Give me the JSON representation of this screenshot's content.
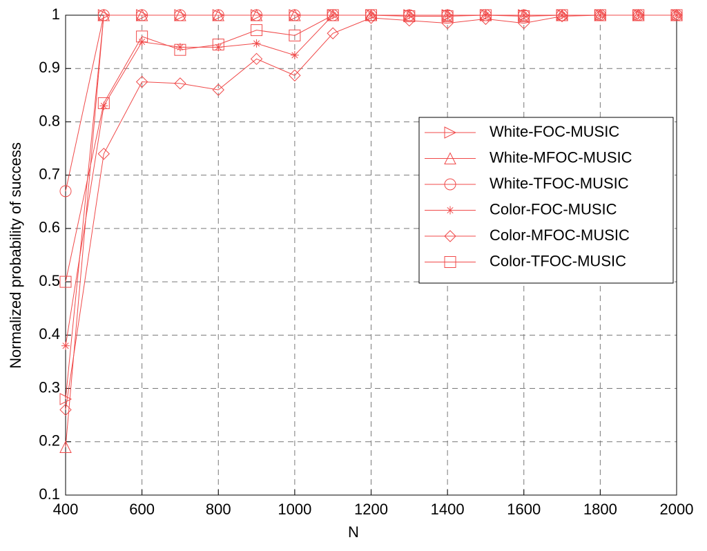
{
  "chart_data": {
    "type": "line",
    "x": [
      400,
      500,
      600,
      700,
      800,
      900,
      1000,
      1100,
      1200,
      1300,
      1400,
      1500,
      1600,
      1700,
      1800,
      1900,
      2000
    ],
    "xlabel": "N",
    "ylabel": "Normalized probability of success",
    "xlim": [
      400,
      2000
    ],
    "xticks": [
      400,
      600,
      800,
      1000,
      1200,
      1400,
      1600,
      1800,
      2000
    ],
    "ylim": [
      0.1,
      1
    ],
    "yticks": [
      0.1,
      0.2,
      0.3,
      0.4,
      0.5,
      0.6,
      0.7,
      0.8,
      0.9,
      1
    ],
    "grid": true,
    "legend": "right",
    "series": [
      {
        "name": "White-FOC-MUSIC",
        "color": "#f04848",
        "marker": "triangle-right",
        "values": [
          0.28,
          1,
          1,
          1,
          1,
          1,
          1,
          1,
          1,
          1,
          1,
          1,
          1,
          1,
          1,
          1,
          1
        ]
      },
      {
        "name": "White-MFOC-MUSIC",
        "color": "#f04848",
        "marker": "triangle-up",
        "values": [
          0.19,
          1,
          1,
          1,
          1,
          1,
          1,
          1,
          1,
          1,
          1,
          1,
          1,
          1,
          1,
          1,
          1
        ]
      },
      {
        "name": "White-TFOC-MUSIC",
        "color": "#f04848",
        "marker": "circle",
        "values": [
          0.67,
          1,
          1,
          1,
          1,
          1,
          1,
          1,
          1,
          1,
          1,
          1,
          1,
          1,
          1,
          1,
          1
        ]
      },
      {
        "name": "Color-FOC-MUSIC",
        "color": "#f04848",
        "marker": "star",
        "values": [
          0.38,
          0.83,
          0.95,
          0.94,
          0.94,
          0.947,
          0.925,
          1,
          1,
          1,
          1,
          1,
          1,
          1,
          1,
          1,
          1
        ]
      },
      {
        "name": "Color-MFOC-MUSIC",
        "color": "#f04848",
        "marker": "diamond",
        "values": [
          0.26,
          0.74,
          0.875,
          0.872,
          0.86,
          0.918,
          0.887,
          0.966,
          0.995,
          0.99,
          0.985,
          0.993,
          0.985,
          0.998,
          1,
          1,
          1
        ]
      },
      {
        "name": "Color-TFOC-MUSIC",
        "color": "#f04848",
        "marker": "square",
        "values": [
          0.5,
          0.835,
          0.96,
          0.935,
          0.945,
          0.972,
          0.962,
          1,
          1,
          0.998,
          0.998,
          1,
          0.998,
          1,
          1,
          1,
          1
        ]
      }
    ]
  }
}
